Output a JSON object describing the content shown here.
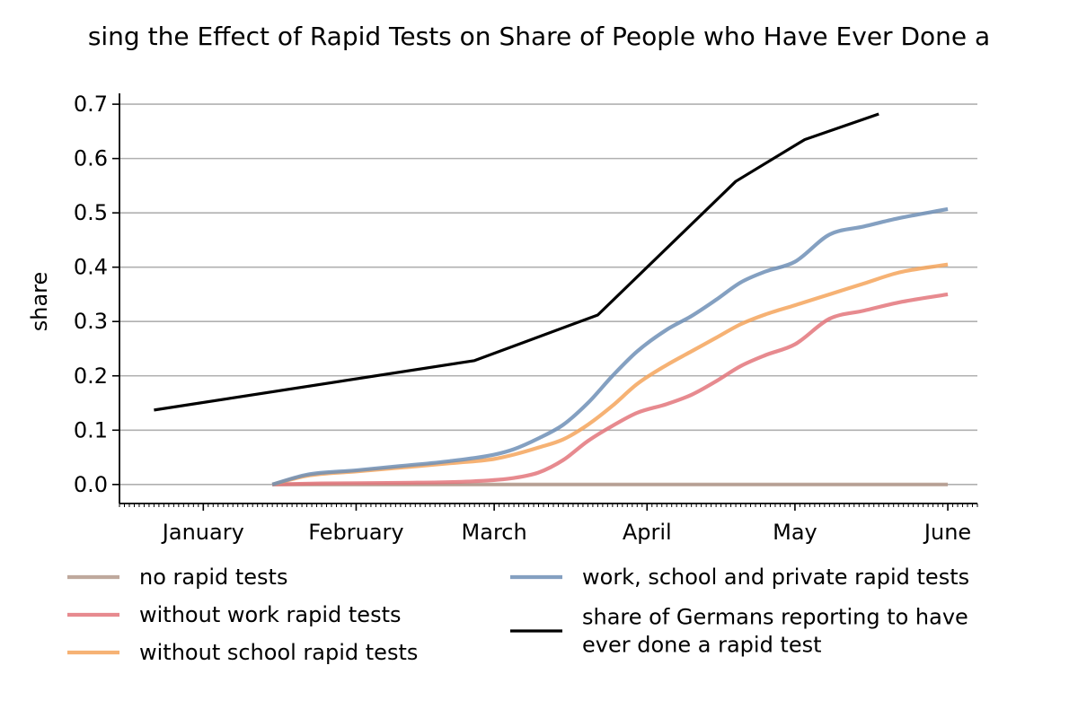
{
  "chart_data": {
    "type": "line",
    "title": "sing the Effect of Rapid Tests on Share of People who Have Ever Done a",
    "ylabel": "share",
    "xlabel": "",
    "ylim": [
      -0.035,
      0.72
    ],
    "xlim": [
      "2020-12-15",
      "2021-06-07"
    ],
    "grid": "horizontal",
    "legend_position": "bottom",
    "y_ticks": [
      "0.0",
      "0.1",
      "0.2",
      "0.3",
      "0.4",
      "0.5",
      "0.6",
      "0.7"
    ],
    "x_ticks": [
      {
        "date": "2021-01-01",
        "label": "January"
      },
      {
        "date": "2021-02-01",
        "label": "February"
      },
      {
        "date": "2021-03-01",
        "label": "March"
      },
      {
        "date": "2021-04-01",
        "label": "April"
      },
      {
        "date": "2021-05-01",
        "label": "May"
      },
      {
        "date": "2021-06-01",
        "label": "June"
      }
    ],
    "series": [
      {
        "name": "no rapid tests",
        "color": "#b49a8c",
        "points": [
          [
            "2021-01-15",
            0.0
          ],
          [
            "2021-06-01",
            0.0
          ]
        ]
      },
      {
        "name": "without work rapid tests",
        "color": "#e3767b",
        "points": [
          [
            "2021-01-15",
            0.0
          ],
          [
            "2021-01-25",
            0.002
          ],
          [
            "2021-02-10",
            0.003
          ],
          [
            "2021-02-25",
            0.006
          ],
          [
            "2021-03-05",
            0.012
          ],
          [
            "2021-03-10",
            0.022
          ],
          [
            "2021-03-15",
            0.045
          ],
          [
            "2021-03-20",
            0.08
          ],
          [
            "2021-03-25",
            0.108
          ],
          [
            "2021-03-30",
            0.132
          ],
          [
            "2021-04-05",
            0.148
          ],
          [
            "2021-04-10",
            0.165
          ],
          [
            "2021-04-15",
            0.19
          ],
          [
            "2021-04-20",
            0.218
          ],
          [
            "2021-04-25",
            0.238
          ],
          [
            "2021-05-01",
            0.258
          ],
          [
            "2021-05-08",
            0.305
          ],
          [
            "2021-05-15",
            0.32
          ],
          [
            "2021-05-22",
            0.335
          ],
          [
            "2021-06-01",
            0.35
          ]
        ]
      },
      {
        "name": "without school rapid tests",
        "color": "#f5a45c",
        "points": [
          [
            "2021-01-15",
            0.0
          ],
          [
            "2021-01-22",
            0.016
          ],
          [
            "2021-02-01",
            0.024
          ],
          [
            "2021-02-10",
            0.031
          ],
          [
            "2021-02-20",
            0.039
          ],
          [
            "2021-03-01",
            0.047
          ],
          [
            "2021-03-05",
            0.055
          ],
          [
            "2021-03-10",
            0.068
          ],
          [
            "2021-03-15",
            0.083
          ],
          [
            "2021-03-20",
            0.11
          ],
          [
            "2021-03-25",
            0.145
          ],
          [
            "2021-03-30",
            0.185
          ],
          [
            "2021-04-05",
            0.22
          ],
          [
            "2021-04-10",
            0.245
          ],
          [
            "2021-04-15",
            0.27
          ],
          [
            "2021-04-20",
            0.295
          ],
          [
            "2021-04-25",
            0.313
          ],
          [
            "2021-05-01",
            0.33
          ],
          [
            "2021-05-08",
            0.35
          ],
          [
            "2021-05-15",
            0.37
          ],
          [
            "2021-05-22",
            0.39
          ],
          [
            "2021-06-01",
            0.405
          ]
        ]
      },
      {
        "name": "work, school and private rapid tests",
        "color": "#6f8fb6",
        "points": [
          [
            "2021-01-15",
            0.0
          ],
          [
            "2021-01-22",
            0.018
          ],
          [
            "2021-02-01",
            0.026
          ],
          [
            "2021-02-10",
            0.034
          ],
          [
            "2021-02-20",
            0.043
          ],
          [
            "2021-03-01",
            0.055
          ],
          [
            "2021-03-05",
            0.065
          ],
          [
            "2021-03-10",
            0.085
          ],
          [
            "2021-03-15",
            0.11
          ],
          [
            "2021-03-20",
            0.15
          ],
          [
            "2021-03-25",
            0.2
          ],
          [
            "2021-03-30",
            0.245
          ],
          [
            "2021-04-05",
            0.285
          ],
          [
            "2021-04-10",
            0.31
          ],
          [
            "2021-04-15",
            0.34
          ],
          [
            "2021-04-20",
            0.372
          ],
          [
            "2021-04-25",
            0.392
          ],
          [
            "2021-05-01",
            0.41
          ],
          [
            "2021-05-08",
            0.46
          ],
          [
            "2021-05-15",
            0.475
          ],
          [
            "2021-05-22",
            0.49
          ],
          [
            "2021-06-01",
            0.507
          ]
        ]
      },
      {
        "name": "share of Germans reporting to have ever done a rapid test",
        "legend_lines": [
          "share of Germans reporting to have",
          "ever done a rapid test"
        ],
        "color": "#000000",
        "points": [
          [
            "2020-12-22",
            0.137
          ],
          [
            "2021-02-25",
            0.228
          ],
          [
            "2021-03-22",
            0.312
          ],
          [
            "2021-04-19",
            0.558
          ],
          [
            "2021-05-03",
            0.635
          ],
          [
            "2021-05-18",
            0.682
          ]
        ]
      }
    ]
  }
}
